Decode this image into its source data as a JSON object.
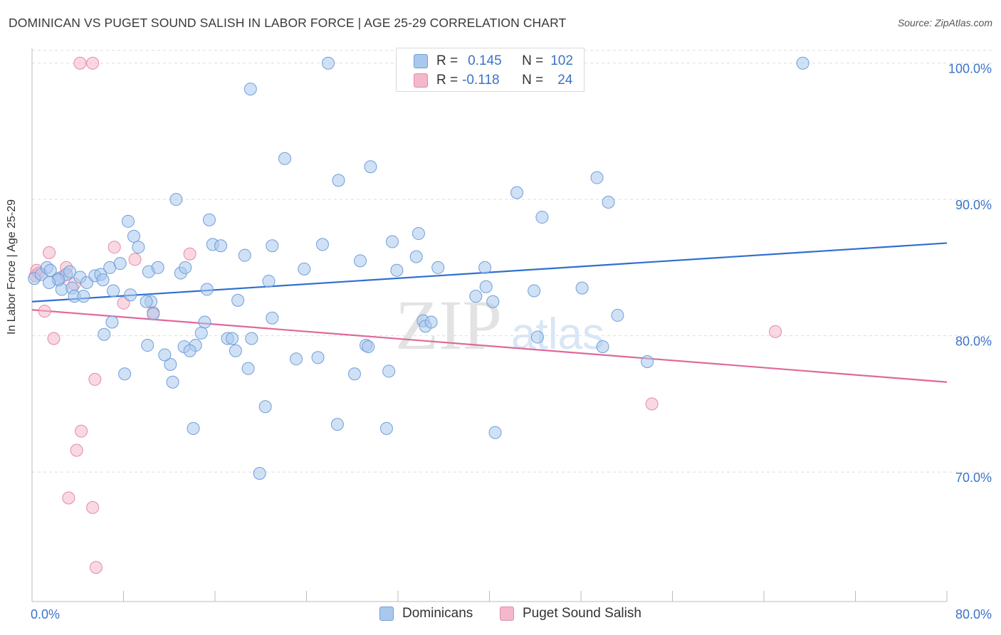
{
  "title": "DOMINICAN VS PUGET SOUND SALISH IN LABOR FORCE | AGE 25-29 CORRELATION CHART",
  "source": "Source: ZipAtlas.com",
  "watermark": {
    "zip": "ZIP",
    "atlas": "atlas"
  },
  "colors": {
    "blue_fill": "#a9c8ee",
    "blue_stroke": "#6f9fd8",
    "blue_line": "#2f6fd0",
    "pink_fill": "#f4b8cb",
    "pink_stroke": "#e48aa8",
    "pink_line": "#e0689a",
    "tick_label": "#3b73c8",
    "grid": "#dddddd"
  },
  "legend_top": [
    {
      "r_key": "R =",
      "r_val": "0.145",
      "n_key": "N =",
      "n_val": "102"
    },
    {
      "r_key": "R =",
      "r_val": "-0.118",
      "n_key": "N =",
      "n_val": "24"
    }
  ],
  "legend_bottom": [
    "Dominicans",
    "Puget Sound Salish"
  ],
  "chart_data": {
    "type": "scatter",
    "title": "DOMINICAN VS PUGET SOUND SALISH IN LABOR FORCE | AGE 25-29 CORRELATION CHART",
    "xlabel": "",
    "ylabel": "In Labor Force | Age 25-29",
    "xlim": [
      0,
      80
    ],
    "ylim": [
      60.5,
      101.5
    ],
    "x_tick_labels": [
      "0.0%",
      "80.0%"
    ],
    "y_ticks": [
      70,
      80,
      90,
      100
    ],
    "y_tick_labels": [
      "70.0%",
      "80.0%",
      "90.0%",
      "100.0%"
    ],
    "grid": true,
    "legend_placement": "bottom",
    "series": [
      {
        "name": "Dominicans",
        "R": 0.145,
        "N": 102,
        "trend": [
          [
            0,
            82.5
          ],
          [
            80,
            86.8
          ]
        ],
        "points": [
          [
            0.2,
            84.2
          ],
          [
            0.8,
            84.5
          ],
          [
            1.3,
            85.0
          ],
          [
            1.6,
            84.8
          ],
          [
            2.3,
            84.2
          ],
          [
            3.0,
            84.5
          ],
          [
            2.6,
            83.4
          ],
          [
            3.5,
            83.5
          ],
          [
            3.7,
            82.9
          ],
          [
            4.2,
            84.3
          ],
          [
            4.8,
            83.9
          ],
          [
            5.5,
            84.4
          ],
          [
            6.0,
            84.5
          ],
          [
            6.2,
            84.1
          ],
          [
            6.8,
            85.0
          ],
          [
            7.7,
            85.3
          ],
          [
            8.4,
            88.4
          ],
          [
            8.9,
            87.3
          ],
          [
            9.3,
            86.5
          ],
          [
            7.1,
            83.3
          ],
          [
            8.6,
            83.0
          ],
          [
            10.4,
            82.5
          ],
          [
            10.0,
            82.5
          ],
          [
            10.6,
            81.6
          ],
          [
            7.0,
            81.0
          ],
          [
            6.3,
            80.1
          ],
          [
            10.2,
            84.7
          ],
          [
            11.0,
            85.0
          ],
          [
            12.6,
            90.0
          ],
          [
            13.0,
            84.6
          ],
          [
            13.4,
            85.0
          ],
          [
            15.5,
            88.5
          ],
          [
            15.8,
            86.7
          ],
          [
            16.5,
            86.6
          ],
          [
            15.3,
            83.4
          ],
          [
            18.0,
            82.6
          ],
          [
            18.6,
            85.9
          ],
          [
            21.0,
            86.6
          ],
          [
            20.7,
            84.0
          ],
          [
            21.0,
            81.3
          ],
          [
            22.1,
            93.0
          ],
          [
            23.8,
            84.9
          ],
          [
            25.4,
            86.7
          ],
          [
            26.8,
            91.4
          ],
          [
            28.7,
            85.5
          ],
          [
            29.6,
            92.4
          ],
          [
            31.5,
            86.9
          ],
          [
            31.9,
            84.8
          ],
          [
            33.6,
            85.8
          ],
          [
            33.8,
            87.5
          ],
          [
            19.1,
            98.1
          ],
          [
            25.9,
            100.0
          ],
          [
            15.1,
            81.0
          ],
          [
            13.3,
            79.2
          ],
          [
            12.1,
            77.9
          ],
          [
            12.3,
            76.6
          ],
          [
            11.6,
            78.6
          ],
          [
            14.3,
            79.3
          ],
          [
            14.8,
            80.2
          ],
          [
            13.8,
            78.9
          ],
          [
            17.1,
            79.8
          ],
          [
            17.5,
            79.8
          ],
          [
            17.8,
            78.9
          ],
          [
            19.2,
            79.8
          ],
          [
            18.9,
            77.6
          ],
          [
            20.4,
            74.8
          ],
          [
            23.1,
            78.3
          ],
          [
            25.0,
            78.4
          ],
          [
            26.7,
            73.5
          ],
          [
            28.2,
            77.2
          ],
          [
            29.2,
            79.3
          ],
          [
            29.4,
            79.2
          ],
          [
            31.2,
            77.4
          ],
          [
            31.0,
            73.2
          ],
          [
            34.2,
            81.1
          ],
          [
            34.4,
            80.7
          ],
          [
            34.9,
            81.0
          ],
          [
            35.5,
            85.0
          ],
          [
            39.6,
            85.0
          ],
          [
            38.8,
            82.9
          ],
          [
            39.7,
            83.6
          ],
          [
            40.3,
            82.5
          ],
          [
            40.5,
            72.9
          ],
          [
            42.4,
            90.5
          ],
          [
            43.9,
            83.3
          ],
          [
            44.2,
            79.9
          ],
          [
            44.6,
            88.7
          ],
          [
            48.1,
            83.5
          ],
          [
            49.4,
            91.6
          ],
          [
            50.4,
            89.8
          ],
          [
            51.2,
            81.5
          ],
          [
            49.9,
            79.2
          ],
          [
            53.8,
            78.1
          ],
          [
            67.4,
            100.0
          ],
          [
            8.1,
            77.2
          ],
          [
            4.5,
            82.9
          ],
          [
            2.3,
            84.1
          ],
          [
            1.5,
            83.9
          ],
          [
            3.3,
            84.7
          ],
          [
            10.1,
            79.3
          ],
          [
            19.9,
            69.9
          ],
          [
            14.1,
            73.2
          ]
        ]
      },
      {
        "name": "Puget Sound Salish",
        "R": -0.118,
        "N": 24,
        "trend": [
          [
            0,
            81.9
          ],
          [
            80,
            76.6
          ]
        ],
        "points": [
          [
            0.3,
            84.4
          ],
          [
            0.4,
            84.8
          ],
          [
            1.1,
            81.8
          ],
          [
            1.5,
            86.1
          ],
          [
            1.9,
            79.8
          ],
          [
            2.6,
            84.3
          ],
          [
            3.0,
            85.0
          ],
          [
            3.7,
            83.8
          ],
          [
            4.3,
            73.0
          ],
          [
            3.9,
            71.6
          ],
          [
            3.2,
            68.1
          ],
          [
            5.3,
            67.4
          ],
          [
            5.6,
            63.0
          ],
          [
            5.5,
            76.8
          ],
          [
            4.2,
            100.0
          ],
          [
            5.3,
            100.0
          ],
          [
            7.2,
            86.5
          ],
          [
            8.0,
            82.4
          ],
          [
            9.0,
            85.6
          ],
          [
            10.6,
            81.7
          ],
          [
            13.8,
            86.0
          ],
          [
            54.2,
            75.0
          ],
          [
            65.0,
            80.3
          ],
          [
            0.6,
            84.6
          ]
        ]
      }
    ]
  }
}
